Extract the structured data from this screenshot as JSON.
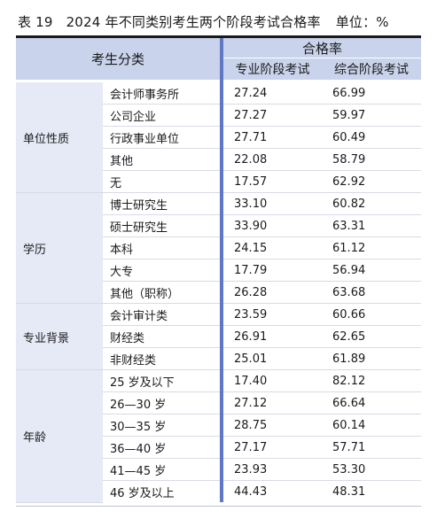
{
  "title": {
    "label": "表 19",
    "text": "2024 年不同类别考生两个阶段考试合格率",
    "unit": "单位：%"
  },
  "header": {
    "category": "考生分类",
    "group": "合格率",
    "col_professional": "专业阶段考试",
    "col_comprehensive": "综合阶段考试"
  },
  "groups": [
    {
      "name": "单位性质",
      "rows": [
        {
          "label": "会计师事务所",
          "professional": "27.24",
          "comprehensive": "66.99"
        },
        {
          "label": "公司企业",
          "professional": "27.27",
          "comprehensive": "59.97"
        },
        {
          "label": "行政事业单位",
          "professional": "27.71",
          "comprehensive": "60.49"
        },
        {
          "label": "其他",
          "professional": "22.08",
          "comprehensive": "58.79"
        },
        {
          "label": "无",
          "professional": "17.57",
          "comprehensive": "62.92"
        }
      ]
    },
    {
      "name": "学历",
      "rows": [
        {
          "label": "博士研究生",
          "professional": "33.10",
          "comprehensive": "60.82"
        },
        {
          "label": "硕士研究生",
          "professional": "33.90",
          "comprehensive": "63.31"
        },
        {
          "label": "本科",
          "professional": "24.15",
          "comprehensive": "61.12"
        },
        {
          "label": "大专",
          "professional": "17.79",
          "comprehensive": "56.94"
        },
        {
          "label": "其他（职称）",
          "professional": "26.28",
          "comprehensive": "63.68"
        }
      ]
    },
    {
      "name": "专业背景",
      "rows": [
        {
          "label": "会计审计类",
          "professional": "23.59",
          "comprehensive": "60.66"
        },
        {
          "label": "财经类",
          "professional": "26.91",
          "comprehensive": "62.65"
        },
        {
          "label": "非财经类",
          "professional": "25.01",
          "comprehensive": "61.89"
        }
      ]
    },
    {
      "name": "年龄",
      "rows": [
        {
          "label": "25 岁及以下",
          "professional": "17.40",
          "comprehensive": "82.12"
        },
        {
          "label": "26—30 岁",
          "professional": "27.12",
          "comprehensive": "66.64"
        },
        {
          "label": "30—35 岁",
          "professional": "28.75",
          "comprehensive": "60.14"
        },
        {
          "label": "36—40 岁",
          "professional": "27.17",
          "comprehensive": "57.71"
        },
        {
          "label": "41—45 岁",
          "professional": "23.93",
          "comprehensive": "53.30"
        },
        {
          "label": "46 岁及以上",
          "professional": "44.43",
          "comprehensive": "48.31"
        }
      ]
    }
  ],
  "colors": {
    "header_bg": "#c9d3ec",
    "group_bg": "#e6eaf6",
    "accent": "#5f78c4"
  }
}
